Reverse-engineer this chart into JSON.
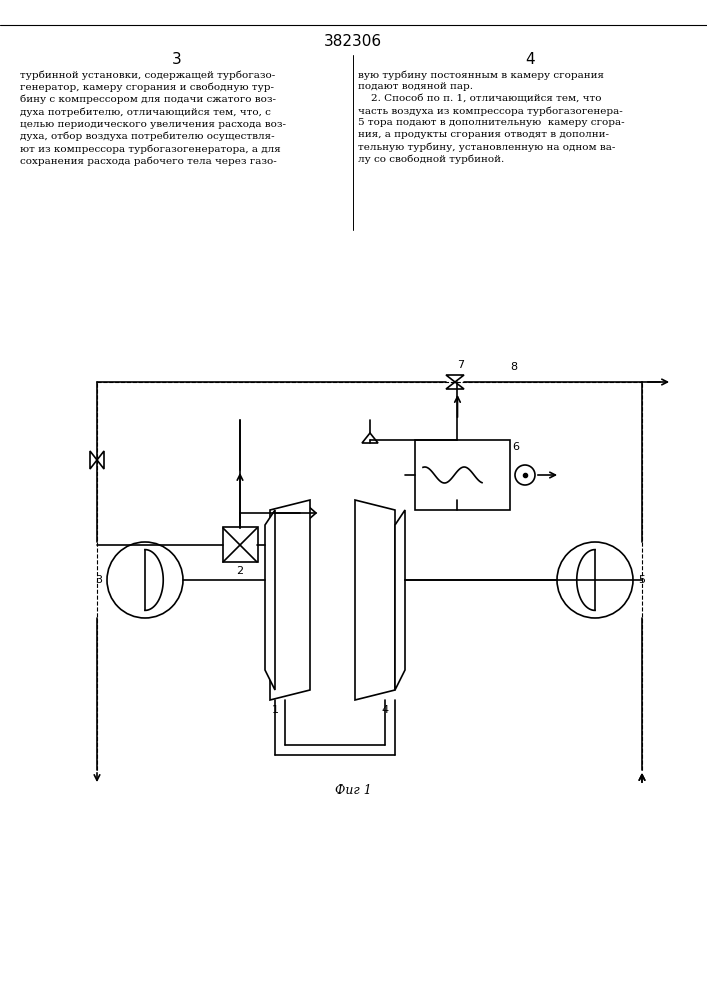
{
  "title": "382306",
  "page_left": "3",
  "page_right": "4",
  "fig_label": "Фиг 1",
  "text_left": "турбинной установки, содержащей турбогазо-\nгенератор, камеру сгорания и свободную тур-\nбину с компрессором для подачи сжатого воз-\nдуха потребителю, отличающийся тем, что, с\nцелью периодического увеличения расхода воз-\nдуха, отбор воздуха потребителю осуществля-\nют из компрессора турбогазогенератора, а для\nсохранения расхода рабочего тела через газо-",
  "text_right": "вую турбину постоянным в камеру сгорания\nподают водяной пар.\n    2. Способ по п. 1, отличающийся тем, что\nчасть воздуха из компрессора турбогазогенера-\nтора подают в дополнительную  камеру сгора-\nния, а продукты сгорания отводят в дополни-\nтельную турбину, установленную на одном ва-\nлу со свободной турбиной.",
  "bg_color": "#ffffff",
  "line_color": "#000000",
  "text_color": "#000000"
}
